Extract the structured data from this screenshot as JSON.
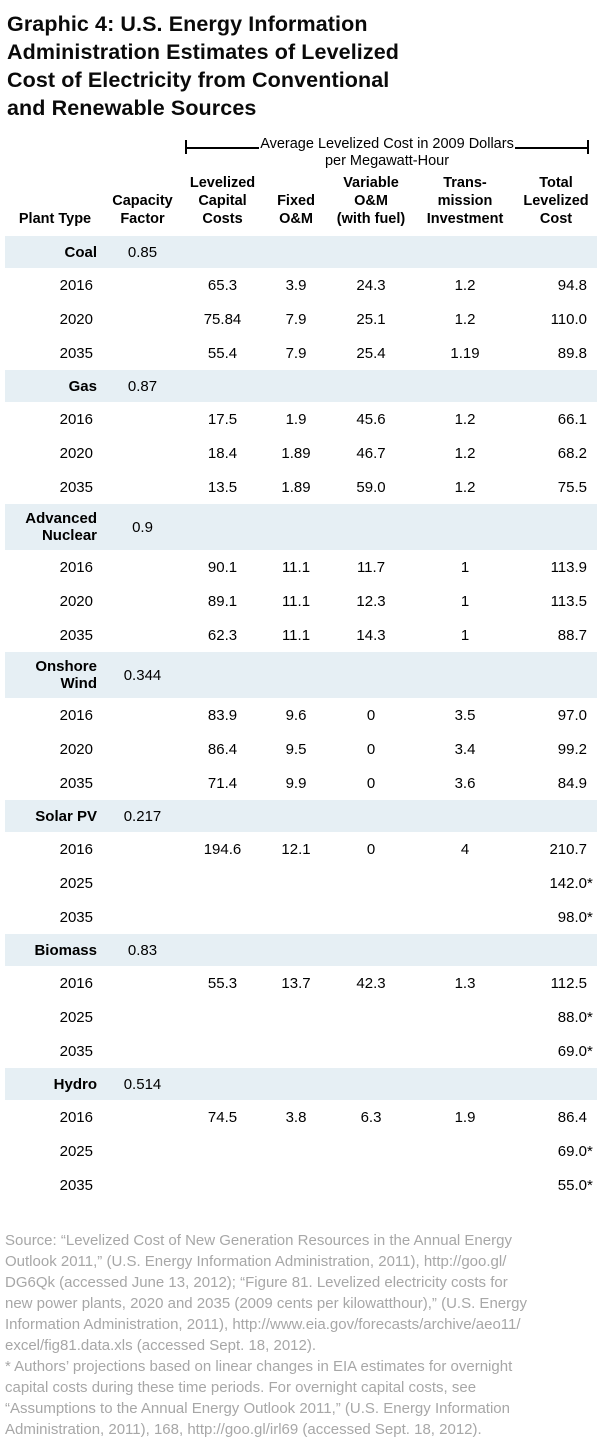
{
  "chart_data": {
    "type": "table",
    "title": "Graphic 4: U.S. Energy Information\nAdministration Estimates of Levelized\nCost of Electricity from Conventional\nand Renewable Sources",
    "unit_header": {
      "line1": "Average Levelized Cost in 2009 Dollars",
      "line2": "per Megawatt-Hour"
    },
    "columns": [
      "Plant Type",
      "Capacity\nFactor",
      "Levelized\nCapital\nCosts",
      "Fixed\nO&M",
      "Variable\nO&M\n(with fuel)",
      "Trans-\nmission\nInvestment",
      "Total\nLevelized\nCost"
    ],
    "sections": [
      {
        "plant_type": "Coal",
        "capacity_factor": "0.85",
        "rows": [
          {
            "year": "2016",
            "values": [
              "65.3",
              "3.9",
              "24.3",
              "1.2",
              "94.8"
            ]
          },
          {
            "year": "2020",
            "values": [
              "75.84",
              "7.9",
              "25.1",
              "1.2",
              "110.0"
            ]
          },
          {
            "year": "2035",
            "values": [
              "55.4",
              "7.9",
              "25.4",
              "1.19",
              "89.8"
            ]
          }
        ]
      },
      {
        "plant_type": "Gas",
        "capacity_factor": "0.87",
        "rows": [
          {
            "year": "2016",
            "values": [
              "17.5",
              "1.9",
              "45.6",
              "1.2",
              "66.1"
            ]
          },
          {
            "year": "2020",
            "values": [
              "18.4",
              "1.89",
              "46.7",
              "1.2",
              "68.2"
            ]
          },
          {
            "year": "2035",
            "values": [
              "13.5",
              "1.89",
              "59.0",
              "1.2",
              "75.5"
            ]
          }
        ]
      },
      {
        "plant_type": "Advanced\nNuclear",
        "capacity_factor": "0.9",
        "rows": [
          {
            "year": "2016",
            "values": [
              "90.1",
              "11.1",
              "11.7",
              "1",
              "113.9"
            ]
          },
          {
            "year": "2020",
            "values": [
              "89.1",
              "11.1",
              "12.3",
              "1",
              "113.5"
            ]
          },
          {
            "year": "2035",
            "values": [
              "62.3",
              "11.1",
              "14.3",
              "1",
              "88.7"
            ]
          }
        ]
      },
      {
        "plant_type": "Onshore\nWind",
        "capacity_factor": "0.344",
        "rows": [
          {
            "year": "2016",
            "values": [
              "83.9",
              "9.6",
              "0",
              "3.5",
              "97.0"
            ]
          },
          {
            "year": "2020",
            "values": [
              "86.4",
              "9.5",
              "0",
              "3.4",
              "99.2"
            ]
          },
          {
            "year": "2035",
            "values": [
              "71.4",
              "9.9",
              "0",
              "3.6",
              "84.9"
            ]
          }
        ]
      },
      {
        "plant_type": "Solar PV",
        "capacity_factor": "0.217",
        "rows": [
          {
            "year": "2016",
            "values": [
              "194.6",
              "12.1",
              "0",
              "4",
              "210.7"
            ]
          },
          {
            "year": "2025",
            "values": [
              "",
              "",
              "",
              "",
              "142.0*"
            ]
          },
          {
            "year": "2035",
            "values": [
              "",
              "",
              "",
              "",
              "98.0*"
            ]
          }
        ]
      },
      {
        "plant_type": "Biomass",
        "capacity_factor": "0.83",
        "rows": [
          {
            "year": "2016",
            "values": [
              "55.3",
              "13.7",
              "42.3",
              "1.3",
              "112.5"
            ]
          },
          {
            "year": "2025",
            "values": [
              "",
              "",
              "",
              "",
              "88.0*"
            ]
          },
          {
            "year": "2035",
            "values": [
              "",
              "",
              "",
              "",
              "69.0*"
            ]
          }
        ]
      },
      {
        "plant_type": "Hydro",
        "capacity_factor": "0.514",
        "rows": [
          {
            "year": "2016",
            "values": [
              "74.5",
              "3.8",
              "6.3",
              "1.9",
              "86.4"
            ]
          },
          {
            "year": "2025",
            "values": [
              "",
              "",
              "",
              "",
              "69.0*"
            ]
          },
          {
            "year": "2035",
            "values": [
              "",
              "",
              "",
              "",
              "55.0*"
            ]
          }
        ]
      }
    ],
    "source_note": "Source: “Levelized Cost of New Generation Resources in the Annual Energy\nOutlook 2011,” (U.S. Energy Information Administration, 2011), http://goo.gl/\nDG6Qk (accessed June 13, 2012); “Figure 81. Levelized electricity costs for\nnew power plants, 2020 and 2035 (2009 cents per kilowatthour),” (U.S. Energy\nInformation Administration, 2011), http://www.eia.gov/forecasts/archive/aeo11/\nexcel/fig81.data.xls (accessed Sept. 18, 2012).\n* Authors’ projections based on linear changes in EIA estimates for overnight\ncapital costs during these time periods. For overnight capital costs, see\n“Assumptions to the Annual Energy Outlook 2011,” (U.S. Energy Information\nAdministration, 2011), 168, http://goo.gl/irl69 (accessed Sept. 18, 2012)."
  },
  "colors": {
    "band": "#e6eff4",
    "text": "#000000",
    "note_gray": "#a7a7a7"
  }
}
